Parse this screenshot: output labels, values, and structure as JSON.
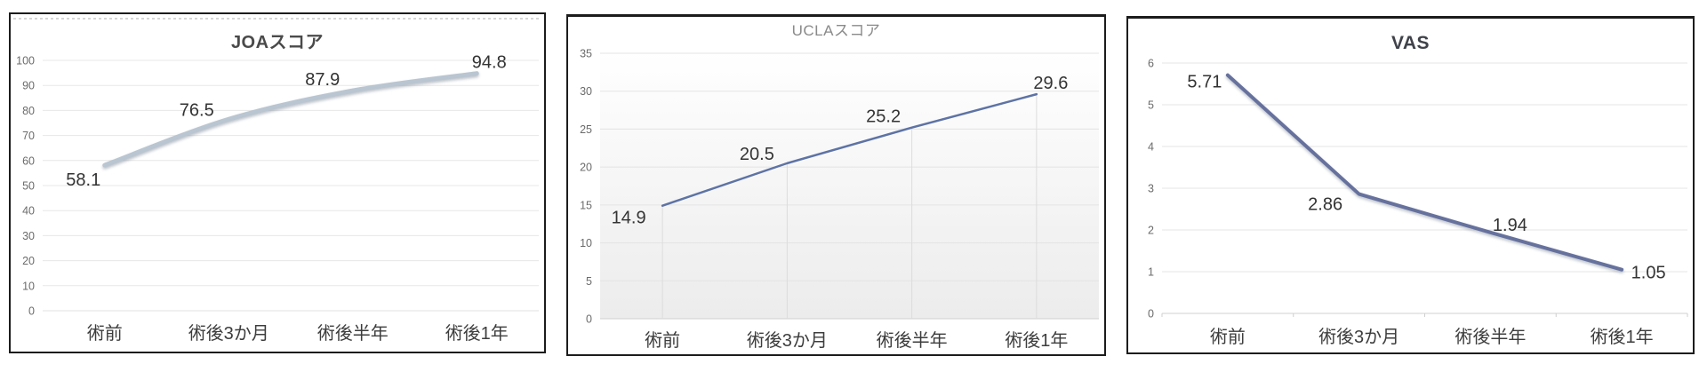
{
  "chart_data": [
    {
      "id": "joa",
      "type": "line",
      "title": "JOAスコア",
      "categories": [
        "術前",
        "術後3か月",
        "術後半年",
        "術後1年"
      ],
      "values": [
        58.1,
        76.5,
        87.9,
        94.8
      ],
      "data_labels": [
        "58.1",
        "76.5",
        "87.9",
        "94.8"
      ],
      "ylim": [
        0,
        100
      ],
      "ytick_step": 10,
      "yticks": [
        "0",
        "10",
        "20",
        "30",
        "40",
        "50",
        "60",
        "70",
        "80",
        "90",
        "100"
      ],
      "xlabel": "",
      "ylabel": "",
      "grid": "horizontal",
      "legend": "none",
      "line_color": "#b9c5d1",
      "line_width": 5,
      "smooth": true,
      "shadow": true,
      "drop_lines": false,
      "plot_gradient": false,
      "axis_ticks": false,
      "grid_color": "#e7e7e7",
      "zero_line_color": "#e0e0e0",
      "title_color": "#4a4a4a",
      "title_bold": true,
      "tick_color": "#6b6b6b",
      "category_color": "#3d3d3d",
      "data_label_color": "#333333"
    },
    {
      "id": "ucla",
      "type": "line",
      "title": "UCLAスコア",
      "categories": [
        "術前",
        "術後3か月",
        "術後半年",
        "術後1年"
      ],
      "values": [
        14.9,
        20.5,
        25.2,
        29.6
      ],
      "data_labels": [
        "14.9",
        "20.5",
        "25.2",
        "29.6"
      ],
      "ylim": [
        0,
        35
      ],
      "ytick_step": 5,
      "yticks": [
        "0",
        "5",
        "10",
        "15",
        "20",
        "25",
        "30",
        "35"
      ],
      "xlabel": "",
      "ylabel": "",
      "grid": "horizontal",
      "legend": "none",
      "line_color": "#5d73a5",
      "line_width": 2.5,
      "smooth": false,
      "shadow": false,
      "drop_lines": true,
      "plot_gradient": true,
      "axis_ticks": false,
      "grid_color": "#e3e3e3",
      "zero_line_color": "#cfcfcf",
      "title_color": "#8a8a8a",
      "title_bold": false,
      "tick_color": "#6b6b6b",
      "category_color": "#3d3d3d",
      "data_label_color": "#333333"
    },
    {
      "id": "vas",
      "type": "line",
      "title": "VAS",
      "categories": [
        "術前",
        "術後3か月",
        "術後半年",
        "術後1年"
      ],
      "values": [
        5.71,
        2.86,
        1.94,
        1.05
      ],
      "data_labels": [
        "5.71",
        "2.86",
        "1.94",
        "1.05"
      ],
      "ylim": [
        0,
        6
      ],
      "ytick_step": 1,
      "yticks": [
        "0",
        "1",
        "2",
        "3",
        "4",
        "5",
        "6"
      ],
      "xlabel": "",
      "ylabel": "",
      "grid": "horizontal",
      "legend": "none",
      "line_color": "#66719d",
      "line_width": 4,
      "smooth": false,
      "shadow": true,
      "drop_lines": false,
      "plot_gradient": false,
      "axis_ticks": true,
      "grid_color": "#e5e5e5",
      "zero_line_color": "#d0d0d0",
      "title_color": "#3f424a",
      "title_bold": true,
      "tick_color": "#6b6b6b",
      "category_color": "#3d3d3d",
      "data_label_color": "#333333"
    }
  ]
}
